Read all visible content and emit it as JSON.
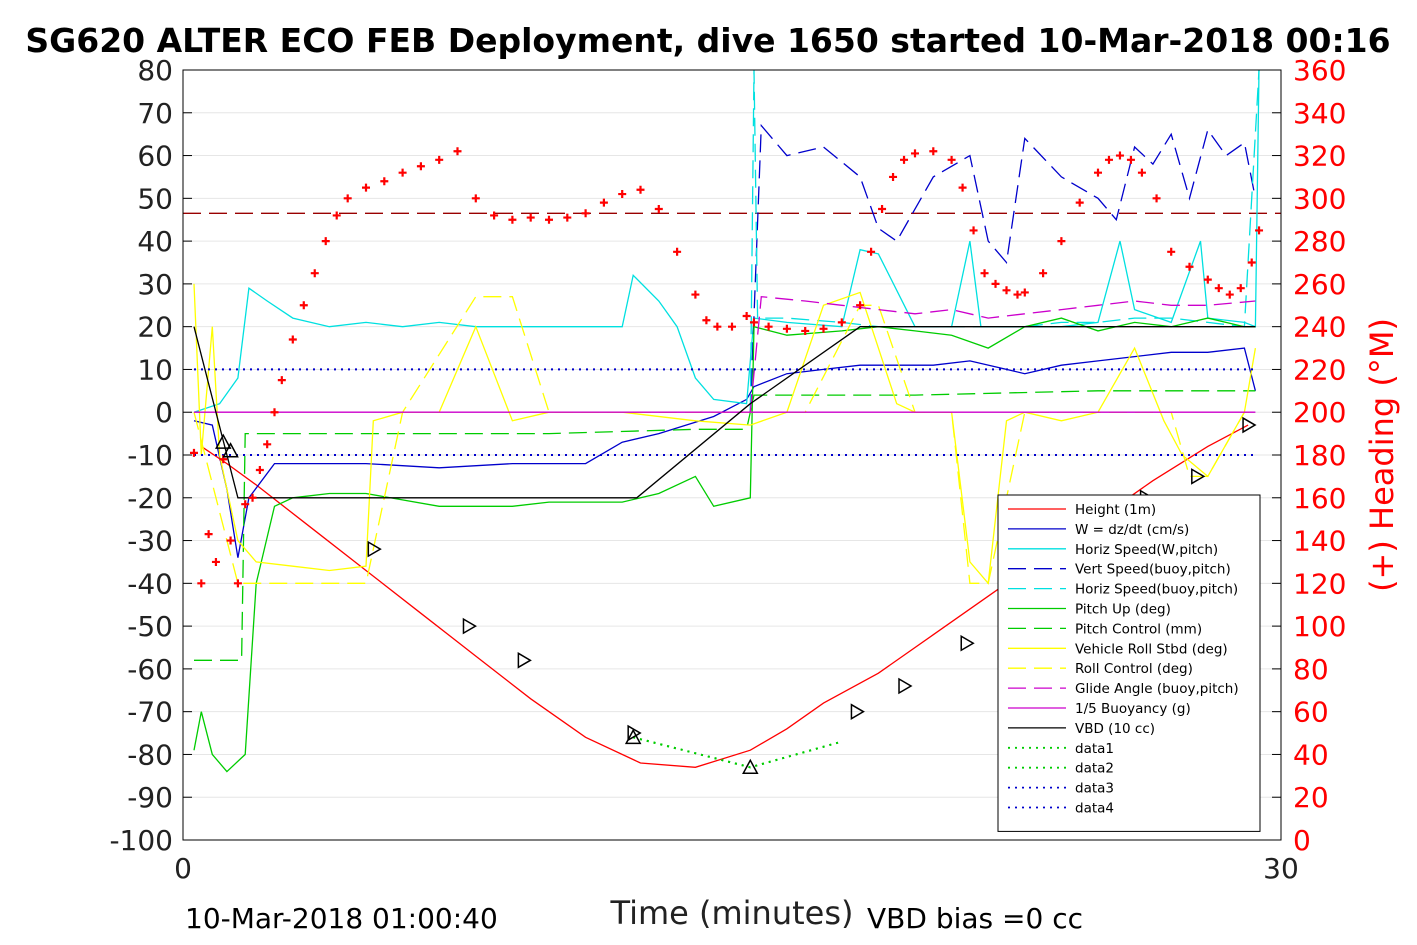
{
  "chart_data": {
    "type": "line",
    "title": "SG620 ALTER ECO FEB Deployment, dive 1650 started 10-Mar-2018 00:16",
    "xlabel": "Time (minutes)",
    "ylabel_right": "(+) Heading (°M)",
    "footer_left": "10-Mar-2018 01:00:40",
    "footer_right": "VBD bias =0 cc",
    "xlim": [
      0,
      30
    ],
    "ylim": [
      -100,
      80
    ],
    "ylim_right": [
      0,
      360
    ],
    "xticks": [
      "0",
      "30"
    ],
    "yticks": [
      "80",
      "70",
      "60",
      "50",
      "40",
      "30",
      "20",
      "10",
      "0",
      "-10",
      "-20",
      "-30",
      "-40",
      "-50",
      "-60",
      "-70",
      "-80",
      "-90",
      "-100"
    ],
    "yticks_right": [
      "360",
      "340",
      "320",
      "300",
      "280",
      "260",
      "240",
      "220",
      "200",
      "180",
      "160",
      "140",
      "120",
      "100",
      "80",
      "60",
      "40",
      "20",
      "0"
    ],
    "grid": true,
    "legend_position": "lower-right",
    "colors": {
      "red": "#ff0000",
      "blue": "#0000cc",
      "cyan": "#00e0e0",
      "green": "#00cc00",
      "yellow": "#ffff00",
      "magenta": "#cc00cc",
      "black": "#000000",
      "brown": "#990000"
    },
    "series": [
      {
        "name": "Height (1m)",
        "color": "#ff0000",
        "style": "solid",
        "x": [
          0.5,
          1.2,
          2.0,
          3.5,
          5.0,
          6.5,
          8.0,
          9.5,
          11.0,
          12.5,
          14.0,
          15.5,
          16.5,
          17.5,
          19.0,
          20.5,
          22.0,
          23.5,
          25.0,
          26.5,
          28.0,
          29.1
        ],
        "y": [
          -8,
          -12,
          -17,
          -27,
          -37,
          -47,
          -57,
          -67,
          -76,
          -82,
          -83,
          -79,
          -74,
          -68,
          -61,
          -52,
          -43,
          -34,
          -25,
          -16,
          -8,
          -3
        ]
      },
      {
        "name": "W = dz/dt (cm/s)",
        "color": "#0000cc",
        "style": "solid",
        "x": [
          0.3,
          0.8,
          1.2,
          1.5,
          1.8,
          2.5,
          3.5,
          5.0,
          7.0,
          9.0,
          10.0,
          11.0,
          12.0,
          13.0,
          14.5,
          15.4,
          15.6,
          16.5,
          17.5,
          18.5,
          19.5,
          20.5,
          21.5,
          22.5,
          23.0,
          24.0,
          25.0,
          26.0,
          27.0,
          28.0,
          29.0,
          29.3
        ],
        "y": [
          -2,
          -3,
          -18,
          -34,
          -20,
          -12,
          -12,
          -12,
          -13,
          -12,
          -12,
          -12,
          -7,
          -5,
          -1,
          3,
          6,
          9,
          10,
          11,
          11,
          11,
          12,
          10,
          9,
          11,
          12,
          13,
          14,
          14,
          15,
          5
        ]
      },
      {
        "name": "Horiz Speed(W,pitch)",
        "color": "#00e0e0",
        "style": "solid",
        "x": [
          0.3,
          1.0,
          1.5,
          1.8,
          2.3,
          3.0,
          4.0,
          5.0,
          6.0,
          7.0,
          8.0,
          9.0,
          10.0,
          11.0,
          12.0,
          12.3,
          13.0,
          13.5,
          14.0,
          14.5,
          15.4,
          15.6,
          16.5,
          18.0,
          18.5,
          19.0,
          20.0,
          21.0,
          21.5,
          21.8,
          22.2,
          23.0,
          24.0,
          25.0,
          25.6,
          26.0,
          27.0,
          27.8,
          28.0,
          29.0,
          29.3,
          29.4
        ],
        "y": [
          0,
          2,
          8,
          29,
          26,
          22,
          20,
          21,
          20,
          21,
          20,
          20,
          20,
          20,
          20,
          32,
          26,
          20,
          8,
          3,
          2,
          22,
          21,
          20,
          38,
          37,
          20,
          20,
          40,
          20,
          20,
          20,
          20,
          21,
          40,
          24,
          21,
          40,
          22,
          21,
          20,
          80
        ]
      },
      {
        "name": "Vert Speed(buoy,pitch)",
        "color": "#0000cc",
        "style": "dashed",
        "x": [
          15.5,
          15.8,
          16.5,
          17.5,
          18.5,
          19.0,
          19.5,
          20.5,
          21.5,
          22.0,
          22.5,
          23.0,
          24.0,
          25.0,
          25.5,
          26.0,
          26.5,
          27.0,
          27.5,
          28.0,
          28.5,
          29.0,
          29.3
        ],
        "y": [
          0,
          67,
          60,
          62,
          55,
          43,
          40,
          55,
          60,
          40,
          35,
          64,
          55,
          50,
          45,
          62,
          58,
          65,
          50,
          66,
          60,
          63,
          50
        ]
      },
      {
        "name": "Horiz Speed(buoy,pitch)",
        "color": "#00e0e0",
        "style": "dashed",
        "x": [
          15.5,
          15.6,
          15.7,
          16.5,
          18.0,
          19.0,
          20.0,
          21.0,
          22.0,
          23.0,
          24.0,
          25.0,
          26.0,
          27.0,
          28.0,
          29.0,
          29.4
        ],
        "y": [
          0,
          80,
          22,
          22,
          21,
          20,
          20,
          20,
          20,
          20,
          21,
          21,
          22,
          22,
          21,
          20,
          80
        ]
      },
      {
        "name": "Pitch Up (deg)",
        "color": "#00cc00",
        "style": "solid",
        "x": [
          0.3,
          0.5,
          0.8,
          1.2,
          1.7,
          2.0,
          2.5,
          3.0,
          4.0,
          5.0,
          7.0,
          9.0,
          10.0,
          12.0,
          13.0,
          14.0,
          14.5,
          15.5,
          15.6,
          16.5,
          18.0,
          19.0,
          20.0,
          21.0,
          22.0,
          23.0,
          24.0,
          25.0,
          26.0,
          27.0,
          28.0,
          29.0,
          29.3
        ],
        "y": [
          -79,
          -70,
          -80,
          -84,
          -80,
          -40,
          -22,
          -20,
          -19,
          -19,
          -22,
          -22,
          -21,
          -21,
          -19,
          -15,
          -22,
          -20,
          20,
          18,
          19,
          20,
          19,
          18,
          15,
          20,
          22,
          19,
          21,
          20,
          22,
          20,
          20
        ]
      },
      {
        "name": "Pitch Control (mm)",
        "color": "#00cc00",
        "style": "dashed",
        "x": [
          0.3,
          1.6,
          1.7,
          2.5,
          5.0,
          10.0,
          14.0,
          15.4,
          15.6,
          20.0,
          25.0,
          29.3
        ],
        "y": [
          -58,
          -58,
          -5,
          -5,
          -5,
          -5,
          -4,
          -4,
          4,
          4,
          5,
          5
        ]
      },
      {
        "name": "Vehicle Roll Stbd (deg)",
        "color": "#ffff00",
        "style": "solid",
        "x": [
          0.3,
          0.5,
          0.8,
          1.0,
          1.5,
          2.0,
          3.0,
          4.0,
          5.0,
          5.2,
          6.0,
          7.0,
          8.0,
          9.0,
          10.0,
          12.0,
          14.0,
          15.5,
          16.5,
          17.5,
          18.5,
          19.5,
          20.0,
          21.0,
          21.5,
          22.0,
          22.5,
          23.0,
          24.0,
          25.0,
          26.0,
          26.8,
          27.3,
          28.0,
          29.0,
          29.3
        ],
        "y": [
          30,
          -10,
          20,
          -10,
          -30,
          -35,
          -36,
          -37,
          -36,
          -2,
          0,
          0,
          20,
          -2,
          0,
          0,
          -2,
          -3,
          0,
          25,
          28,
          2,
          0,
          0,
          -35,
          -40,
          -2,
          0,
          -2,
          0,
          15,
          -2,
          -10,
          -15,
          0,
          15
        ]
      },
      {
        "name": "Roll Control (deg)",
        "color": "#ffff00",
        "style": "dashed",
        "x": [
          0.3,
          1.5,
          3.0,
          5.0,
          6.0,
          8.0,
          9.0,
          10.0,
          14.0,
          15.5,
          17.0,
          18.5,
          19.0,
          20.0,
          21.0,
          21.5,
          22.0,
          23.0,
          26.0,
          27.0,
          27.5,
          28.0,
          29.0,
          29.3
        ],
        "y": [
          0,
          -40,
          -40,
          -40,
          0,
          27,
          27,
          0,
          0,
          0,
          0,
          25,
          25,
          0,
          0,
          -40,
          -40,
          0,
          0,
          0,
          -15,
          -15,
          0,
          0
        ]
      },
      {
        "name": "Glide Angle (buoy,pitch)",
        "color": "#cc00cc",
        "style": "dashed",
        "x": [
          15.5,
          15.8,
          17.0,
          18.0,
          19.0,
          20.0,
          21.0,
          22.0,
          23.0,
          24.0,
          25.0,
          26.0,
          27.0,
          28.0,
          29.3
        ],
        "y": [
          0,
          27,
          26,
          25,
          24,
          23,
          24,
          22,
          23,
          24,
          25,
          26,
          25,
          25,
          26
        ]
      },
      {
        "name": "1/5 Buoyancy (g)",
        "color": "#cc00cc",
        "style": "solid",
        "x": [
          0.3,
          5.0,
          10.0,
          15.4,
          15.6,
          29.3
        ],
        "y": [
          0,
          0,
          0,
          0,
          0,
          0
        ]
      },
      {
        "name": "VBD (10 cc)",
        "color": "#000000",
        "style": "solid",
        "x": [
          0.3,
          1.5,
          5.0,
          10.0,
          12.4,
          15.5,
          18.5,
          22.0,
          26.0,
          29.3
        ],
        "y": [
          20,
          -20,
          -20,
          -20,
          -20,
          2,
          20,
          20,
          20,
          20
        ]
      },
      {
        "name": "data1",
        "color": "#00cc00",
        "style": "dotted",
        "x": [
          12.3,
          15.5,
          18.0
        ],
        "y": [
          -76,
          -83,
          -77
        ]
      },
      {
        "name": "data2",
        "color": "#00cc00",
        "style": "dotted",
        "x": [
          12.3,
          15.5,
          18.0
        ],
        "y": [
          -76,
          -83,
          -77
        ]
      },
      {
        "name": "data3",
        "color": "#0000cc",
        "style": "dotted",
        "x": [
          0.3,
          29.3
        ],
        "y": [
          10,
          10
        ]
      },
      {
        "name": "data4",
        "color": "#0000cc",
        "style": "dotted",
        "x": [
          0.3,
          29.3
        ],
        "y": [
          -10,
          -10
        ]
      }
    ],
    "heading_reference_deg": 293,
    "heading_points": {
      "color": "#ff0000",
      "marker": "+",
      "x": [
        0.3,
        0.5,
        0.7,
        0.9,
        1.1,
        1.3,
        1.5,
        1.7,
        1.9,
        2.1,
        2.3,
        2.5,
        2.7,
        3.0,
        3.3,
        3.6,
        3.9,
        4.2,
        4.5,
        5.0,
        5.5,
        6.0,
        6.5,
        7.0,
        7.5,
        8.0,
        8.5,
        9.0,
        9.5,
        10.0,
        10.5,
        11.0,
        11.5,
        12.0,
        12.5,
        13.0,
        13.5,
        14.0,
        14.3,
        14.6,
        15.0,
        15.4,
        15.6,
        16.0,
        16.5,
        17.0,
        17.5,
        18.0,
        18.5,
        18.8,
        19.1,
        19.4,
        19.7,
        20.0,
        20.5,
        21.0,
        21.3,
        21.6,
        21.9,
        22.2,
        22.5,
        22.8,
        23.0,
        23.5,
        24.0,
        24.5,
        25.0,
        25.3,
        25.6,
        25.9,
        26.2,
        26.6,
        27.0,
        27.5,
        28.0,
        28.3,
        28.6,
        28.9,
        29.2,
        29.4
      ],
      "y": [
        181,
        120,
        143,
        130,
        178,
        140,
        120,
        157,
        160,
        173,
        185,
        200,
        215,
        234,
        250,
        265,
        280,
        292,
        300,
        305,
        308,
        312,
        315,
        318,
        322,
        300,
        292,
        290,
        291,
        290,
        291,
        293,
        298,
        302,
        304,
        295,
        275,
        255,
        243,
        240,
        240,
        245,
        242,
        240,
        239,
        238,
        239,
        242,
        250,
        275,
        295,
        310,
        318,
        321,
        322,
        318,
        305,
        285,
        265,
        260,
        257,
        255,
        256,
        265,
        280,
        298,
        312,
        318,
        320,
        318,
        312,
        300,
        275,
        268,
        262,
        258,
        255,
        258,
        270,
        285
      ]
    },
    "markers": {
      "triangle_right": {
        "x": [
          5.2,
          7.8,
          9.3,
          12.3,
          18.4,
          19.7,
          21.4,
          22.6,
          24.2,
          25.3,
          26.3,
          27.7,
          29.1
        ],
        "y": [
          -32,
          -50,
          -58,
          -75,
          -70,
          -64,
          -54,
          -49,
          -38,
          -32,
          -20,
          -15,
          -3
        ]
      },
      "triangle_up": {
        "x": [
          1.1,
          1.3,
          12.3,
          15.5
        ],
        "y": [
          -7,
          -9,
          -76,
          -83
        ]
      }
    },
    "legend_entries": [
      "Height (1m)",
      "W = dz/dt (cm/s)",
      "Horiz Speed(W,pitch)",
      "Vert Speed(buoy,pitch)",
      "Horiz Speed(buoy,pitch)",
      "Pitch Up (deg)",
      "Pitch Control (mm)",
      "Vehicle Roll Stbd (deg)",
      "Roll Control (deg)",
      "Glide Angle (buoy,pitch)",
      "1/5 Buoyancy (g)",
      "VBD (10 cc)",
      "data1",
      "data2",
      "data3",
      "data4"
    ]
  }
}
